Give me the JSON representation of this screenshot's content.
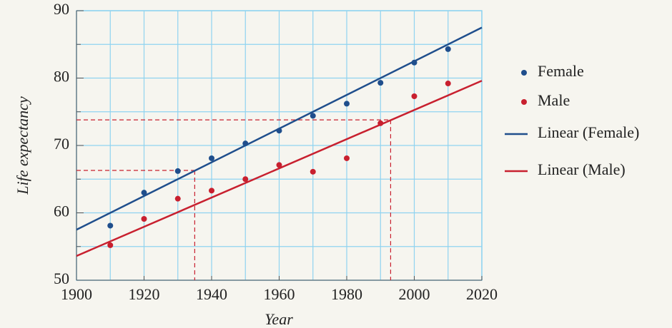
{
  "chart_data": {
    "type": "scatter",
    "xlabel": "Year",
    "ylabel": "Life expectancy",
    "xlim": [
      1900,
      2020
    ],
    "ylim": [
      50,
      90
    ],
    "xticks": [
      1900,
      1920,
      1940,
      1960,
      1980,
      2000,
      2020
    ],
    "yticks": [
      50,
      60,
      70,
      80,
      90
    ],
    "xgrid": [
      1900,
      1910,
      1920,
      1930,
      1940,
      1950,
      1960,
      1970,
      1980,
      1990,
      2000,
      2010,
      2020
    ],
    "ygrid": [
      50,
      55,
      60,
      65,
      70,
      75,
      80,
      85,
      90
    ],
    "grid": true,
    "grid_color": "#8fd3f0",
    "legend": "right",
    "series": [
      {
        "name": "Female",
        "kind": "points",
        "color": "#1f4e8c",
        "x": [
          1910,
          1920,
          1930,
          1940,
          1950,
          1960,
          1970,
          1980,
          1990,
          2000,
          2010
        ],
        "values": [
          58.1,
          63,
          66.2,
          68.1,
          70.3,
          72.2,
          74.4,
          76.2,
          79.3,
          82.3,
          84.3
        ]
      },
      {
        "name": "Male",
        "kind": "points",
        "color": "#c8202f",
        "x": [
          1910,
          1920,
          1930,
          1940,
          1950,
          1960,
          1970,
          1980,
          1990,
          2000,
          2010
        ],
        "values": [
          55.2,
          59.1,
          62.1,
          63.3,
          65,
          67.1,
          66.1,
          68.1,
          73.3,
          77.3,
          79.2
        ]
      },
      {
        "name": "Linear (Female)",
        "kind": "line",
        "color": "#1f4e8c",
        "x": [
          1900,
          2020
        ],
        "values": [
          57.5,
          87.5
        ]
      },
      {
        "name": "Linear (Male)",
        "kind": "line",
        "color": "#c8202f",
        "x": [
          1900,
          2020
        ],
        "values": [
          53.6,
          79.6
        ]
      }
    ],
    "reference_lines": [
      {
        "x": 1935,
        "y": 66.3,
        "color": "#c8202f"
      },
      {
        "x": 1993,
        "y": 73.8,
        "color": "#c8202f"
      }
    ]
  }
}
